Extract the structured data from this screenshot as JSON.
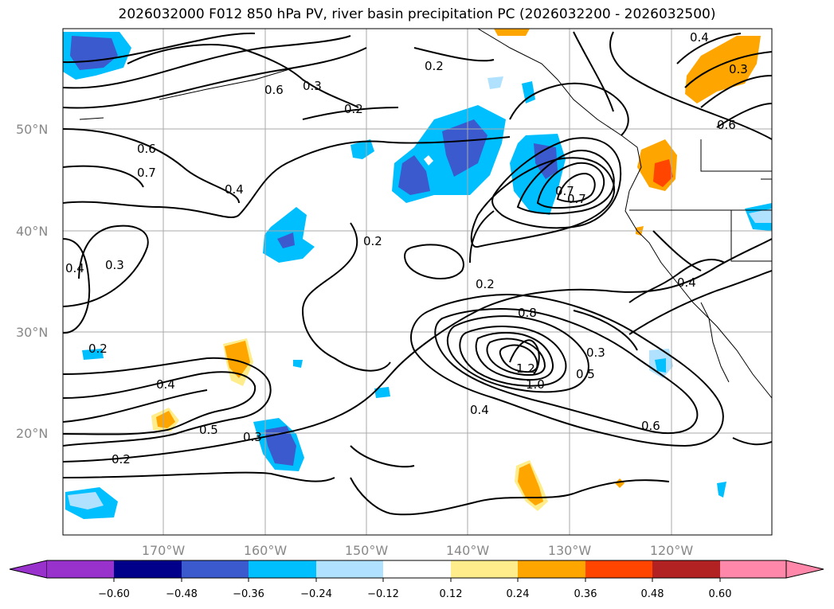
{
  "title": "2026032000 F012 850 hPa PV, river basin precipitation PC (2026032200 - 2026032500)",
  "map": {
    "lat_labels": [
      "50°N",
      "40°N",
      "30°N",
      "20°N"
    ],
    "lon_labels": [
      "170°W",
      "160°W",
      "150°W",
      "140°W",
      "130°W",
      "120°W"
    ],
    "contour_labels": [
      "0.2",
      "0.3",
      "0.4",
      "0.5",
      "0.6",
      "0.7",
      "0.8",
      "1.0",
      "1.2",
      "0.3",
      "0.2",
      "0.4",
      "0.6",
      "0.7",
      "0.4",
      "0.3",
      "0.2",
      "0.6",
      "0.2",
      "0.4",
      "0.5",
      "0.3",
      "0.2",
      "0.6",
      "0.4",
      "0.3",
      "0.4",
      "0.7",
      "0.6",
      "0.2"
    ]
  },
  "colorbar": {
    "colors": [
      "#9932cc",
      "#00008b",
      "#3a5acd",
      "#00bfff",
      "#b0e2ff",
      "#ffffff",
      "#ffec8b",
      "#ffa500",
      "#ff4500",
      "#b22222",
      "#ff88aa"
    ],
    "ticks": [
      "−0.60",
      "−0.48",
      "−0.36",
      "−0.24",
      "−0.12",
      "0.12",
      "0.24",
      "0.36",
      "0.48",
      "0.60"
    ]
  }
}
